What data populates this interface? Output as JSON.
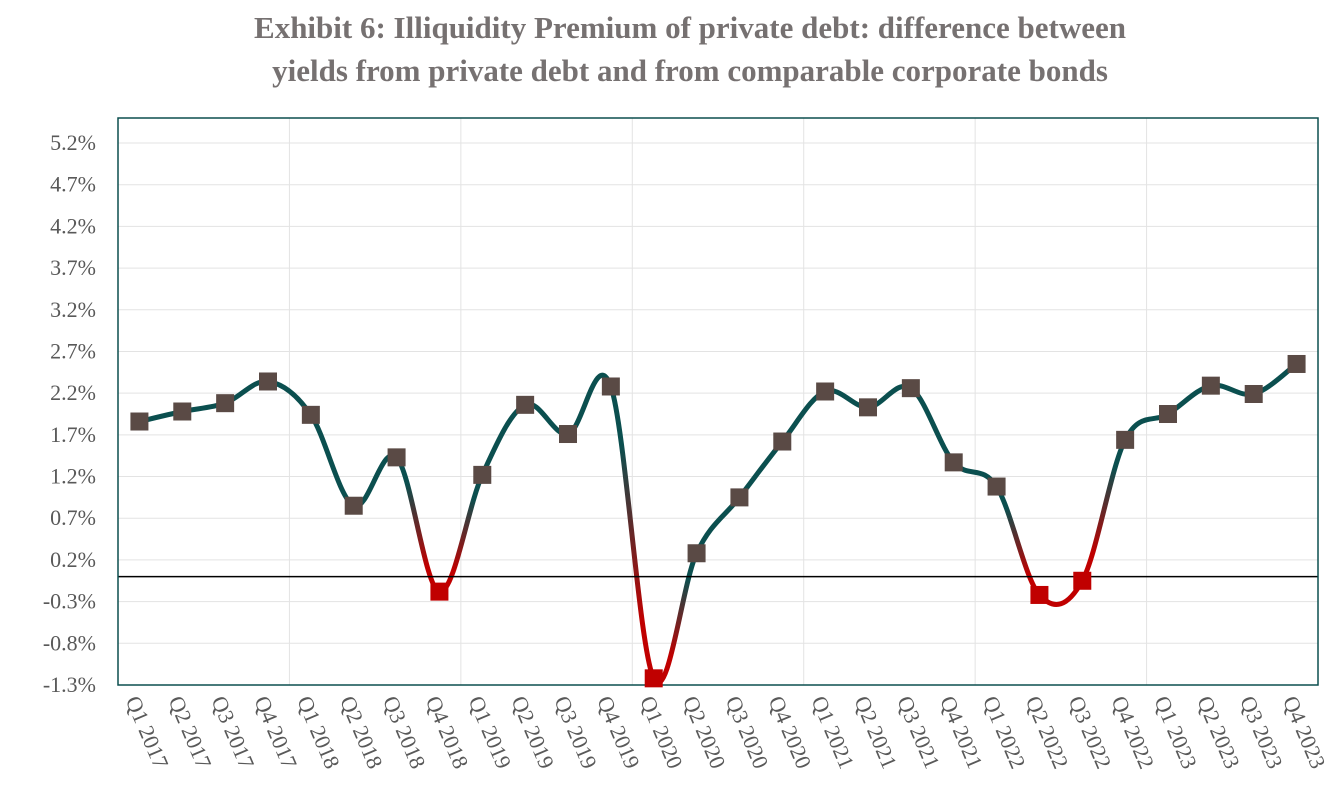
{
  "chart_data": {
    "type": "line",
    "title_lines": [
      "Exhibit 6: Illiquidity Premium of private debt: difference between",
      "yields from private debt and from comparable corporate bonds"
    ],
    "xlabel": "",
    "ylabel": "",
    "categories": [
      "Q1 2017",
      "Q2 2017",
      "Q3 2017",
      "Q4 2017",
      "Q1 2018",
      "Q2 2018",
      "Q3 2018",
      "Q4 2018",
      "Q1 2019",
      "Q2 2019",
      "Q3 2019",
      "Q4 2019",
      "Q1 2020",
      "Q2 2020",
      "Q3 2020",
      "Q4 2020",
      "Q1 2021",
      "Q2 2021",
      "Q3 2021",
      "Q4 2021",
      "Q1 2022",
      "Q2 2022",
      "Q3 2022",
      "Q4 2022",
      "Q1 2023",
      "Q2 2023",
      "Q3 2023",
      "Q4 2023"
    ],
    "series": [
      {
        "values": [
          1.86,
          1.98,
          2.08,
          2.34,
          1.94,
          0.85,
          1.43,
          -0.18,
          1.22,
          2.06,
          1.71,
          2.28,
          -1.22,
          0.28,
          0.95,
          1.62,
          2.22,
          2.03,
          2.26,
          1.37,
          1.08,
          -0.22,
          -0.05,
          1.64,
          1.95,
          2.29,
          2.19,
          2.55
        ]
      }
    ],
    "y_tick_labels": [
      "5.2%",
      "4.7%",
      "4.2%",
      "3.7%",
      "3.2%",
      "2.7%",
      "2.2%",
      "1.7%",
      "1.2%",
      "0.7%",
      "0.2%",
      "-0.3%",
      "-0.8%",
      "-1.3%"
    ],
    "ylim": [
      -1.3,
      5.5
    ],
    "zero_line": true,
    "grid": true,
    "colors": {
      "line_positive": "#0b4f4f",
      "line_negative": "#c00000",
      "marker_positive": "#5a4a45",
      "marker_negative": "#c00000",
      "frame": "#0b4f4f",
      "grid": "#e3e3e3",
      "title": "#767171"
    }
  }
}
